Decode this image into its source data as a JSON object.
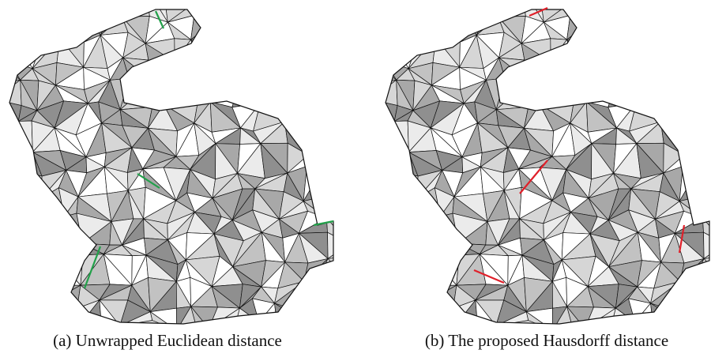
{
  "figures": [
    {
      "caption": "(a) Unwrapped Euclidean distance"
    },
    {
      "caption": "(b) The proposed Hausdorff distance"
    }
  ]
}
